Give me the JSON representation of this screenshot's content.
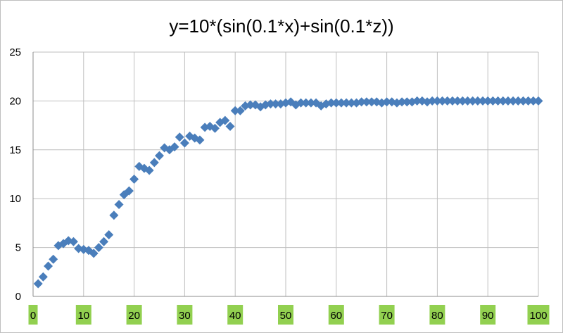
{
  "chart_data": {
    "type": "scatter",
    "title": "y=10*(sin(0.1*x)+sin(0.1*z))",
    "xlabel": "",
    "ylabel": "",
    "xlim": [
      0,
      100
    ],
    "ylim": [
      0,
      25
    ],
    "x_ticks": [
      0,
      10,
      20,
      30,
      40,
      50,
      60,
      70,
      80,
      90,
      100
    ],
    "y_ticks": [
      0,
      5,
      10,
      15,
      20,
      25
    ],
    "grid": true,
    "legend": "none",
    "marker": "diamond",
    "marker_color": "#4a7ebb",
    "x_tick_label_background": "#92d050",
    "series": [
      {
        "x": [
          1,
          2,
          3,
          4,
          5,
          6,
          7,
          8,
          9,
          10,
          11,
          12,
          13,
          14,
          15,
          16,
          17,
          18,
          19,
          20,
          21,
          22,
          23,
          24,
          25,
          26,
          27,
          28,
          29,
          30,
          31,
          32,
          33,
          34,
          35,
          36,
          37,
          38,
          39,
          40,
          41,
          42,
          43,
          44,
          45,
          46,
          47,
          48,
          49,
          50,
          51,
          52,
          53,
          54,
          55,
          56,
          57,
          58,
          59,
          60,
          61,
          62,
          63,
          64,
          65,
          66,
          67,
          68,
          69,
          70,
          71,
          72,
          73,
          74,
          75,
          76,
          77,
          78,
          79,
          80,
          81,
          82,
          83,
          84,
          85,
          86,
          87,
          88,
          89,
          90,
          91,
          92,
          93,
          94,
          95,
          96,
          97,
          98,
          99,
          100
        ],
        "y": [
          1.3,
          2.0,
          3.1,
          3.8,
          5.2,
          5.4,
          5.7,
          5.6,
          4.9,
          4.8,
          4.7,
          4.4,
          5.0,
          5.6,
          6.3,
          8.3,
          9.4,
          10.4,
          10.8,
          12.0,
          13.3,
          13.1,
          12.9,
          13.7,
          14.4,
          15.2,
          15.0,
          15.3,
          16.3,
          15.7,
          16.4,
          16.2,
          16.0,
          17.3,
          17.4,
          17.2,
          17.8,
          18.0,
          17.4,
          19.0,
          19.0,
          19.5,
          19.6,
          19.6,
          19.4,
          19.6,
          19.7,
          19.7,
          19.7,
          19.8,
          19.9,
          19.6,
          19.8,
          19.8,
          19.8,
          19.8,
          19.5,
          19.7,
          19.8,
          19.8,
          19.8,
          19.8,
          19.8,
          19.8,
          19.9,
          19.9,
          19.9,
          19.9,
          19.8,
          19.9,
          19.9,
          19.8,
          19.9,
          19.9,
          19.9,
          20.0,
          20.0,
          19.9,
          20.0,
          20.0,
          20.0,
          20.0,
          20.0,
          20.0,
          20.0,
          20.0,
          20.0,
          20.0,
          20.0,
          20.0,
          20.0,
          20.0,
          20.0,
          20.0,
          20.0,
          20.0,
          20.0,
          20.0,
          20.0,
          20.0
        ]
      }
    ]
  }
}
